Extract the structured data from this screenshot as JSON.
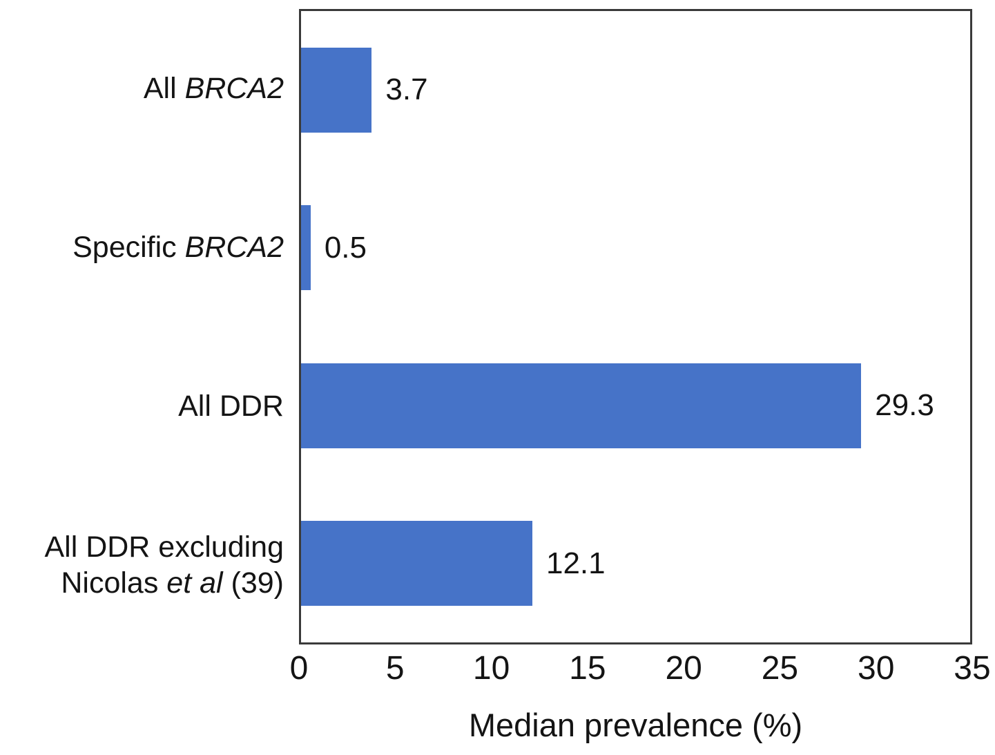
{
  "chart_data": {
    "type": "bar",
    "orientation": "horizontal",
    "title": "",
    "xlabel": "Median prevalence (%)",
    "ylabel": "",
    "xlim": [
      0,
      35
    ],
    "x_ticks": [
      "0",
      "5",
      "10",
      "15",
      "20",
      "25",
      "30",
      "35"
    ],
    "grid": false,
    "legend": "none",
    "bar_color": "#4673C8",
    "plot_border_color": "#3a3a3a",
    "text_color": "#141414",
    "categories": [
      "All BRCA2",
      "Specific BRCA2",
      "All DDR",
      "All DDR excluding Nicolas et al (39)"
    ],
    "categories_rich": [
      [
        [
          {
            "t": "All ",
            "i": false
          },
          {
            "t": "BRCA2",
            "i": true
          }
        ]
      ],
      [
        [
          {
            "t": "Specific ",
            "i": false
          },
          {
            "t": "BRCA2",
            "i": true
          }
        ]
      ],
      [
        [
          {
            "t": "All DDR",
            "i": false
          }
        ]
      ],
      [
        [
          {
            "t": "All DDR excluding",
            "i": false
          }
        ],
        [
          {
            "t": "Nicolas ",
            "i": false
          },
          {
            "t": "et al",
            "i": true
          },
          {
            "t": " (39)",
            "i": false
          }
        ]
      ]
    ],
    "values": [
      3.7,
      0.5,
      29.3,
      12.1
    ],
    "value_labels": [
      "3.7",
      "0.5",
      "29.3",
      "12.1"
    ]
  }
}
